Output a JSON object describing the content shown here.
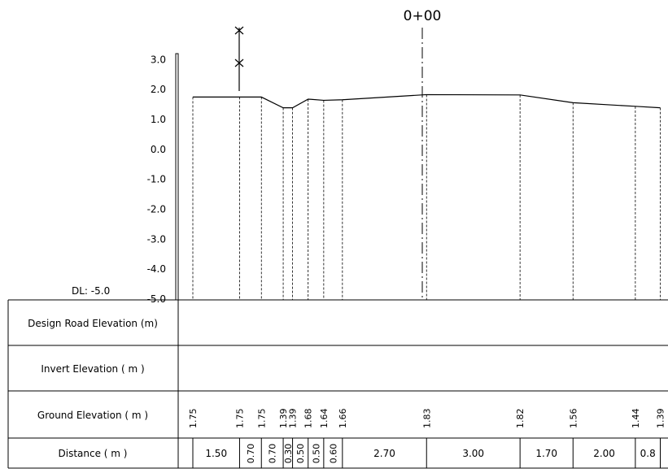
{
  "station_label": "0+00",
  "datum_label": "DL: -5.0",
  "elevation_axis": {
    "ticks": [
      "3.0",
      "2.0",
      "1.0",
      "0.0",
      "-1.0",
      "-2.0",
      "-3.0",
      "-4.0",
      "-5.0"
    ],
    "tick_values": [
      3,
      2,
      1,
      0,
      -1,
      -2,
      -3,
      -4,
      -5
    ],
    "min": -5.0,
    "max": 3.2
  },
  "table": {
    "rows": [
      {
        "label": "Design Road Elevation (m)"
      },
      {
        "label": "Invert Elevation ( m )"
      },
      {
        "label": "Ground Elevation ( m )"
      },
      {
        "label": "Distance ( m )"
      }
    ]
  },
  "chart_data": {
    "type": "line",
    "title": "",
    "xlabel": "Distance ( m )",
    "ylabel": "Ground Elevation ( m )",
    "ylim": [
      -5.0,
      3.2
    ],
    "ground_elevations": [
      1.75,
      1.75,
      1.75,
      1.39,
      1.39,
      1.68,
      1.64,
      1.66,
      1.83,
      1.82,
      1.56,
      1.44,
      1.39
    ],
    "ground_elevation_labels": [
      "1.75",
      "1.75",
      "1.75",
      "1.39",
      "1.39",
      "1.68",
      "1.64",
      "1.66",
      "1.83",
      "1.82",
      "1.56",
      "1.44",
      "1.39"
    ],
    "segment_distances": [
      1.5,
      0.7,
      0.7,
      0.3,
      0.5,
      0.5,
      0.6,
      2.7,
      3.0,
      1.7,
      2.0,
      0.8
    ],
    "segment_distance_labels": [
      "1.50",
      "0.70",
      "0.70",
      "0.30",
      "0.50",
      "0.50",
      "0.60",
      "2.70",
      "3.00",
      "1.70",
      "2.00",
      "0.8"
    ]
  }
}
